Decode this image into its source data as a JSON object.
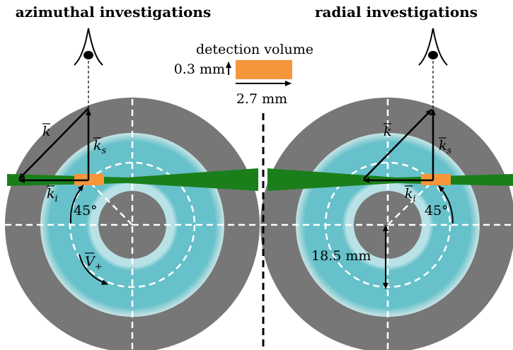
{
  "titles": {
    "left": "azimuthal investigations",
    "right": "radial investigations"
  },
  "legend": {
    "label": "detection volume",
    "height": "0.3 mm",
    "width": "2.7 mm"
  },
  "left_panel": {
    "k": "k",
    "k_s": {
      "base": "k",
      "sub": "s"
    },
    "k_i": {
      "base": "k",
      "sub": "i"
    },
    "angle": "45°",
    "velocity": {
      "base": "V",
      "sub": "+"
    }
  },
  "right_panel": {
    "k": "k",
    "k_s": {
      "base": "k",
      "sub": "s"
    },
    "k_i": {
      "base": "k",
      "sub": "i"
    },
    "angle": "45°",
    "radius": "18.5 mm"
  }
}
